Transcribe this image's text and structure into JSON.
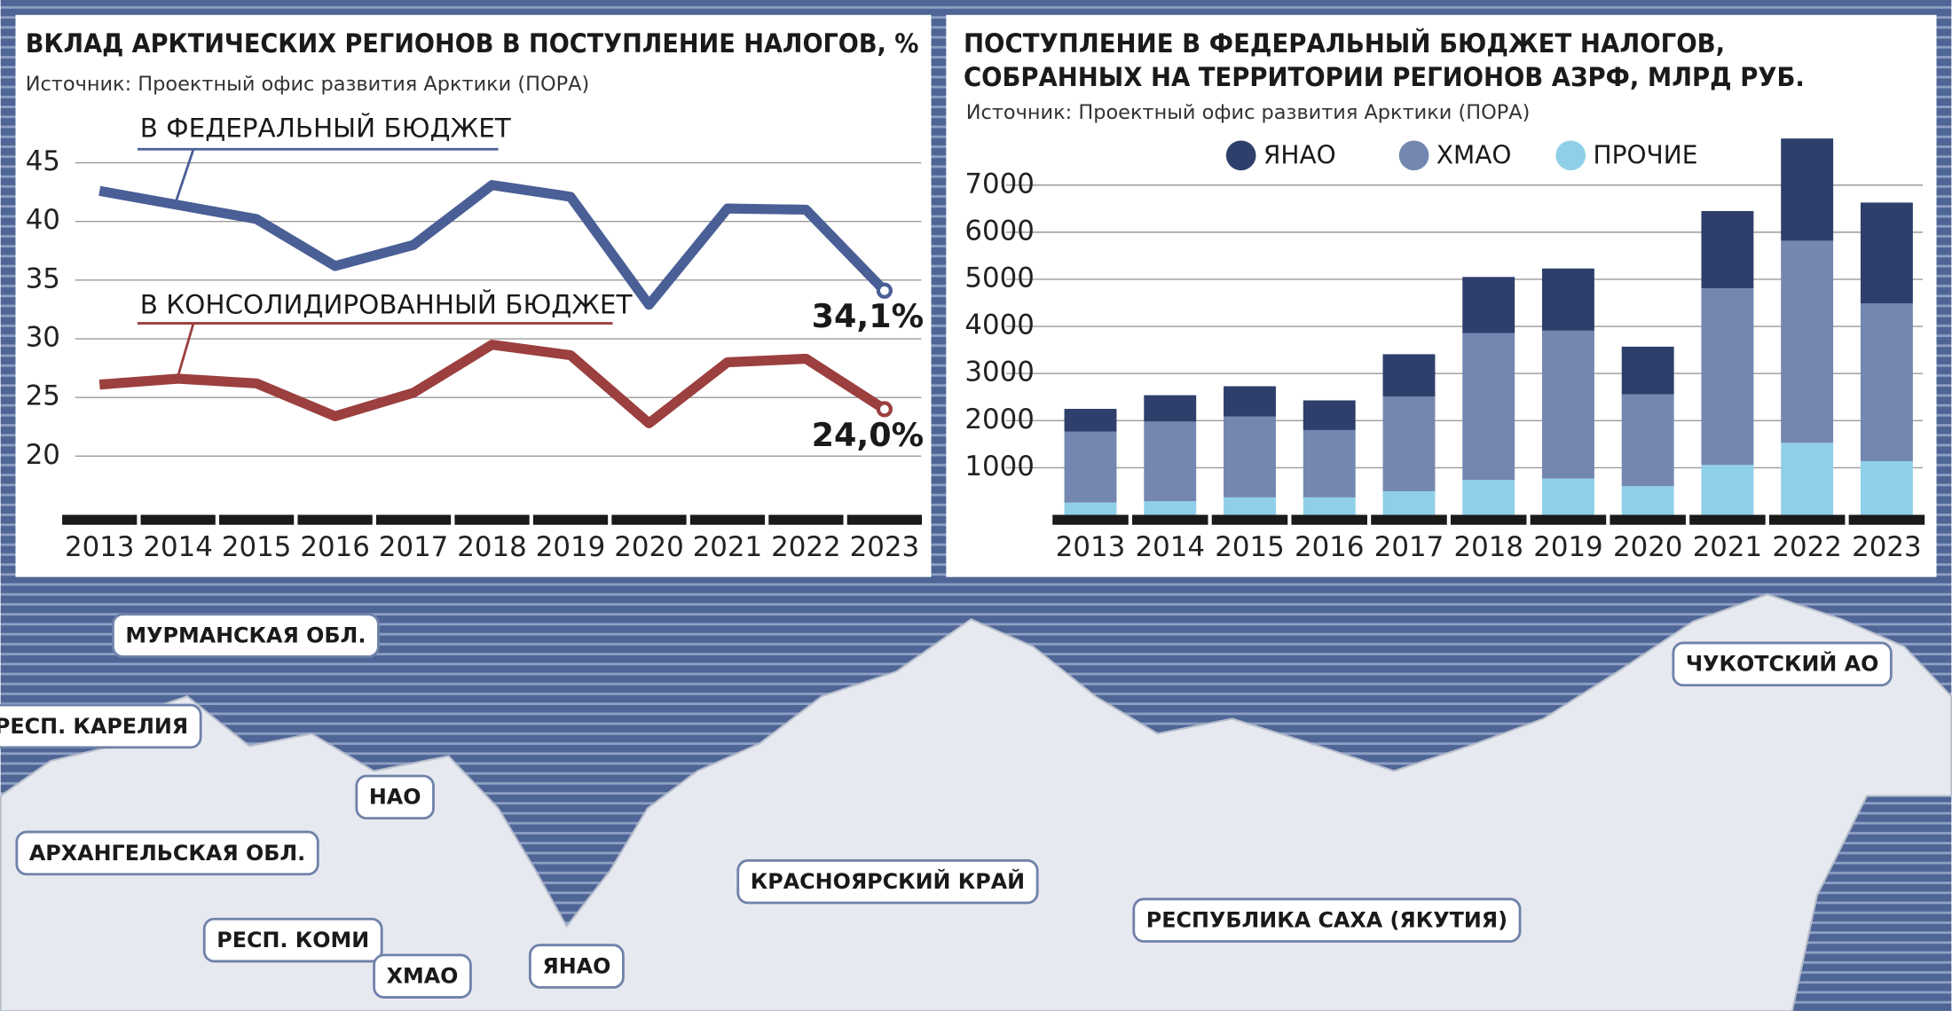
{
  "chart_data": [
    {
      "type": "line",
      "title": "ВКЛАД АРКТИЧЕСКИХ РЕГИОНОВ В ПОСТУПЛЕНИЕ НАЛОГОВ, %",
      "subtitle": "Источник: Проектный офис развития Арктики (ПОРА)",
      "categories": [
        "2013",
        "2014",
        "2015",
        "2016",
        "2017",
        "2018",
        "2019",
        "2020",
        "2021",
        "2022",
        "2023"
      ],
      "series": [
        {
          "name": "В ФЕДЕРАЛЬНЫЙ БЮДЖЕТ",
          "color": "#4a5f96",
          "values": [
            42.6,
            41.4,
            40.2,
            36.2,
            38.0,
            43.1,
            42.1,
            32.9,
            41.1,
            41.0,
            34.1
          ],
          "value_labels": [
            null,
            null,
            null,
            null,
            null,
            null,
            null,
            null,
            null,
            null,
            "34,1%"
          ]
        },
        {
          "name": "В КОНСОЛИДИРОВАННЫЙ БЮДЖЕТ",
          "color": "#9c3f3f",
          "values": [
            26.1,
            26.6,
            26.2,
            23.4,
            25.4,
            29.5,
            28.6,
            22.8,
            28.0,
            28.3,
            24.0
          ],
          "value_labels": [
            null,
            null,
            null,
            null,
            null,
            null,
            null,
            null,
            null,
            null,
            "24,0%"
          ]
        }
      ],
      "ylim": [
        15,
        47
      ],
      "yticks": [
        20,
        25,
        30,
        35,
        40,
        45
      ],
      "grid": true
    },
    {
      "type": "stacked_bar",
      "title": [
        "ПОСТУПЛЕНИЕ В ФЕДЕРАЛЬНЫЙ БЮДЖЕТ НАЛОГОВ,",
        "СОБРАННЫХ НА ТЕРРИТОРИИ РЕГИОНОВ АЗРФ, МЛРД РУБ."
      ],
      "subtitle": "Источник: Проектный офис развития Арктики (ПОРА)",
      "categories": [
        "2013",
        "2014",
        "2015",
        "2016",
        "2017",
        "2018",
        "2019",
        "2020",
        "2021",
        "2022",
        "2023"
      ],
      "series": [
        {
          "name": "ЯНАО",
          "color": "#2e3f6b",
          "values": [
            480,
            560,
            640,
            630,
            900,
            1190,
            1320,
            1010,
            1640,
            2170,
            2140
          ]
        },
        {
          "name": "ХМАО",
          "color": "#7387b0",
          "values": [
            1510,
            1690,
            1720,
            1430,
            2010,
            3120,
            3140,
            1950,
            3750,
            4290,
            3350
          ]
        },
        {
          "name": "ПРОЧИЕ",
          "color": "#8fd0e8",
          "values": [
            260,
            290,
            370,
            370,
            500,
            740,
            770,
            610,
            1060,
            1530,
            1140
          ]
        }
      ],
      "ylim": [
        0,
        8000
      ],
      "yticks": [
        1000,
        2000,
        3000,
        4000,
        5000,
        6000,
        7000
      ],
      "grid": true,
      "legend": "top"
    }
  ],
  "map_labels": [
    "МУРМАНСКАЯ ОБЛ.",
    "РЕСП. КАРЕЛИЯ",
    "НАО",
    "АРХАНГЕЛЬСКАЯ ОБЛ.",
    "РЕСП. КОМИ",
    "ХМАО",
    "ЯНАО",
    "КРАСНОЯРСКИЙ КРАЙ",
    "РЕСПУБЛИКА САХА (ЯКУТИЯ)",
    "ЧУКОТСКИЙ АО"
  ]
}
